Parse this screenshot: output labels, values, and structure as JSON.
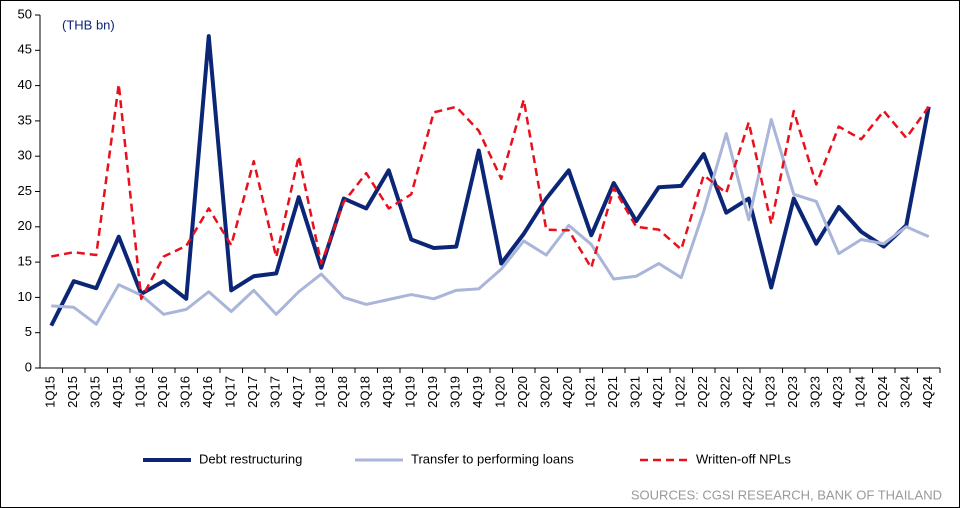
{
  "chart_data": {
    "type": "line",
    "annotation": "(THB bn)",
    "source": "SOURCES: CGSI RESEARCH, BANK OF THAILAND",
    "categories": [
      "1Q15",
      "2Q15",
      "3Q15",
      "4Q15",
      "1Q16",
      "2Q16",
      "3Q16",
      "4Q16",
      "1Q17",
      "2Q17",
      "3Q17",
      "4Q17",
      "1Q18",
      "2Q18",
      "3Q18",
      "4Q18",
      "1Q19",
      "2Q19",
      "3Q19",
      "4Q19",
      "1Q20",
      "2Q20",
      "3Q20",
      "4Q20",
      "1Q21",
      "2Q21",
      "3Q21",
      "4Q21",
      "1Q22",
      "2Q22",
      "3Q22",
      "4Q22",
      "1Q23",
      "2Q23",
      "3Q23",
      "4Q23",
      "1Q24",
      "2Q24",
      "3Q24",
      "4Q24"
    ],
    "series": [
      {
        "name": "Debt restructuring",
        "color": "#0c2677",
        "style": "solid",
        "values": [
          6,
          12.3,
          11.3,
          18.6,
          10.5,
          12.3,
          9.8,
          47,
          11,
          13,
          13.4,
          24.2,
          14.2,
          24,
          22.6,
          28,
          18.2,
          17,
          17.2,
          30.8,
          14.8,
          19,
          24,
          28,
          18.8,
          26.2,
          20.8,
          25.6,
          25.8,
          30.3,
          22,
          24,
          11.4,
          24,
          17.6,
          22.8,
          19.3,
          17.2,
          20.2,
          37
        ]
      },
      {
        "name": "Transfer to performing loans",
        "color": "#a9b6d9",
        "style": "solid",
        "values": [
          8.8,
          8.6,
          6.2,
          11.8,
          10.3,
          7.6,
          8.3,
          10.8,
          8,
          11,
          7.6,
          10.8,
          13.3,
          10,
          9,
          9.7,
          10.4,
          9.8,
          11,
          11.2,
          14,
          18,
          16,
          20.2,
          17.5,
          12.6,
          13,
          14.8,
          12.8,
          22.2,
          33.2,
          21,
          35.2,
          24.6,
          23.6,
          16.2,
          18.2,
          17.6,
          20,
          18.6
        ]
      },
      {
        "name": "Written-off NPLs",
        "color": "#e8101c",
        "style": "dashed",
        "values": [
          15.8,
          16.4,
          16,
          40.2,
          9.8,
          15.8,
          17.3,
          22.6,
          17.4,
          29.3,
          15.7,
          30,
          14.8,
          23.5,
          27.6,
          22.6,
          24.6,
          36.2,
          37,
          33.6,
          26.8,
          38,
          19.6,
          19.5,
          14.2,
          25.5,
          20,
          19.6,
          16.8,
          27.3,
          24.8,
          34.8,
          20.4,
          36.4,
          26,
          34.2,
          32.4,
          36.4,
          32.6,
          37
        ]
      }
    ],
    "ylim": [
      0,
      50
    ],
    "yticks": [
      0,
      5,
      10,
      15,
      20,
      25,
      30,
      35,
      40,
      45,
      50
    ],
    "grid": false
  }
}
